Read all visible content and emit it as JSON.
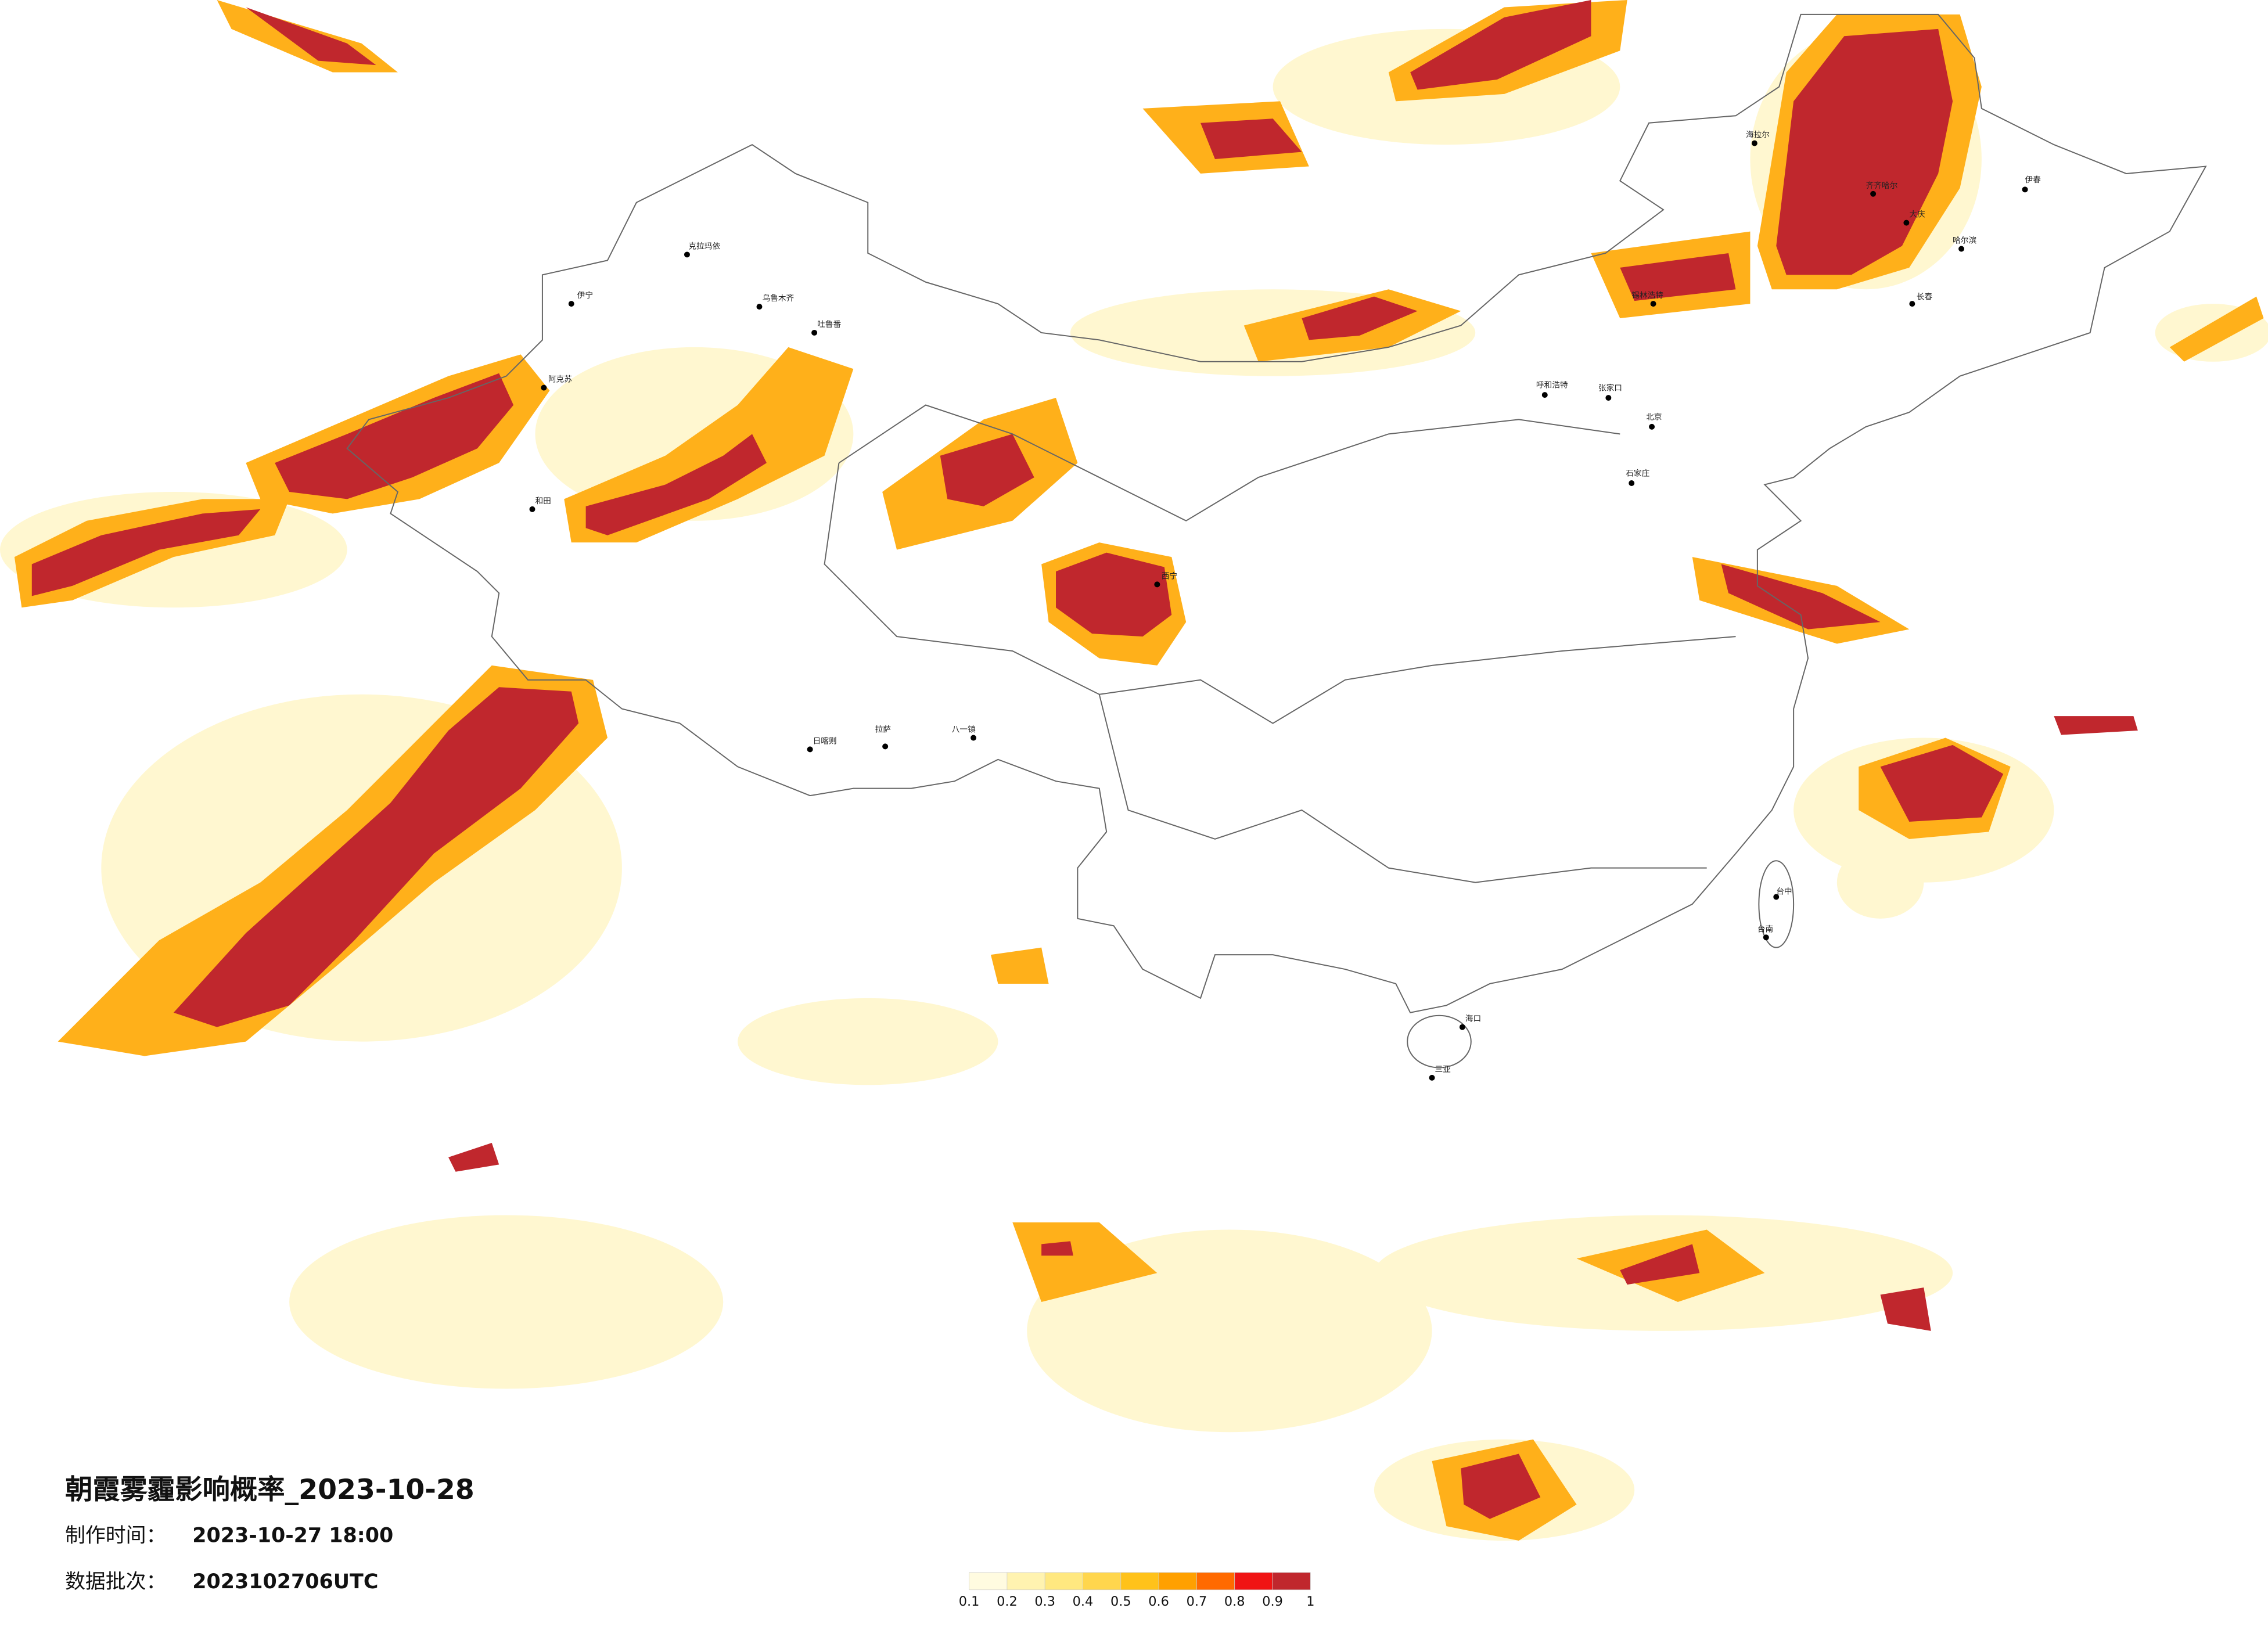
{
  "header": {
    "title": "朝霞雾霾影响概率_2023-10-28",
    "made_label": "制作时间：",
    "made_time": "2023-10-27 18:00",
    "batch_label": "数据批次：",
    "batch": "2023102706UTC"
  },
  "legend": {
    "colors": [
      "#fffbe0",
      "#fff3b0",
      "#ffe880",
      "#ffd64d",
      "#ffc21a",
      "#ffa000",
      "#ff6a00",
      "#f01414",
      "#c0272d"
    ],
    "ticks": [
      0.1,
      0.2,
      0.3,
      0.4,
      0.5,
      0.6,
      0.7,
      0.8,
      0.9,
      1
    ]
  },
  "cities": [
    "海拉尔",
    "齐齐哈尔",
    "大庆",
    "哈尔滨",
    "长春",
    "伊春",
    "锡林浩特",
    "呼和浩特",
    "张家口",
    "北京",
    "石家庄",
    "拉萨",
    "日喀则",
    "八一镇",
    "克拉玛依",
    "乌鲁木齐",
    "吐鲁番",
    "伊宁",
    "阿克苏",
    "和田",
    "西宁",
    "海口",
    "三亚",
    "台中",
    "台南"
  ]
}
